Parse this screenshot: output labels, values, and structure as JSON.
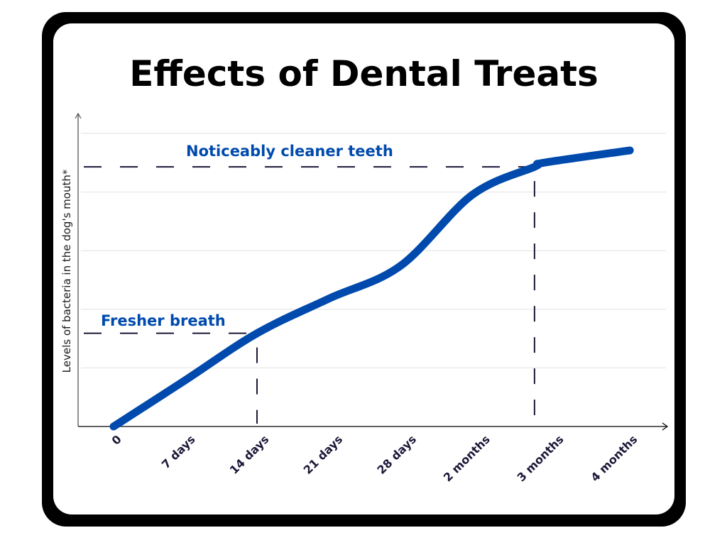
{
  "title": "Effects of Dental Treats",
  "colors": {
    "frame": "#000000",
    "line": "#004AAD",
    "annotation_text": "#004AAD",
    "dashes": "#1C1838",
    "tick_text": "#1C1838",
    "grid": "#EBEBEB",
    "axis": "#000000"
  },
  "chart_data": {
    "type": "line",
    "title": "Effects of Dental Treats",
    "xlabel": "",
    "ylabel": "Levels of bacteria in the dog's mouth*",
    "categories": [
      "0",
      "7 days",
      "14 days",
      "21 days",
      "28 days",
      "2 months",
      "3 months",
      "4 months"
    ],
    "grid": true,
    "ylim": [
      0,
      5
    ],
    "xlim": [
      0,
      7.7
    ],
    "series": [
      {
        "name": "Levels of bacteria",
        "x": [
          0,
          1,
          2,
          3,
          4,
          5,
          5.87,
          6,
          7.2
        ],
        "values": [
          0,
          0.79,
          1.59,
          2.18,
          2.74,
          3.95,
          4.43,
          4.5,
          4.71
        ]
      }
    ],
    "annotations": [
      {
        "text": "Fresher breath",
        "x": 2,
        "y": 1.59
      },
      {
        "text": "Noticeably cleaner teeth",
        "x": 5.87,
        "y": 4.43
      }
    ]
  }
}
